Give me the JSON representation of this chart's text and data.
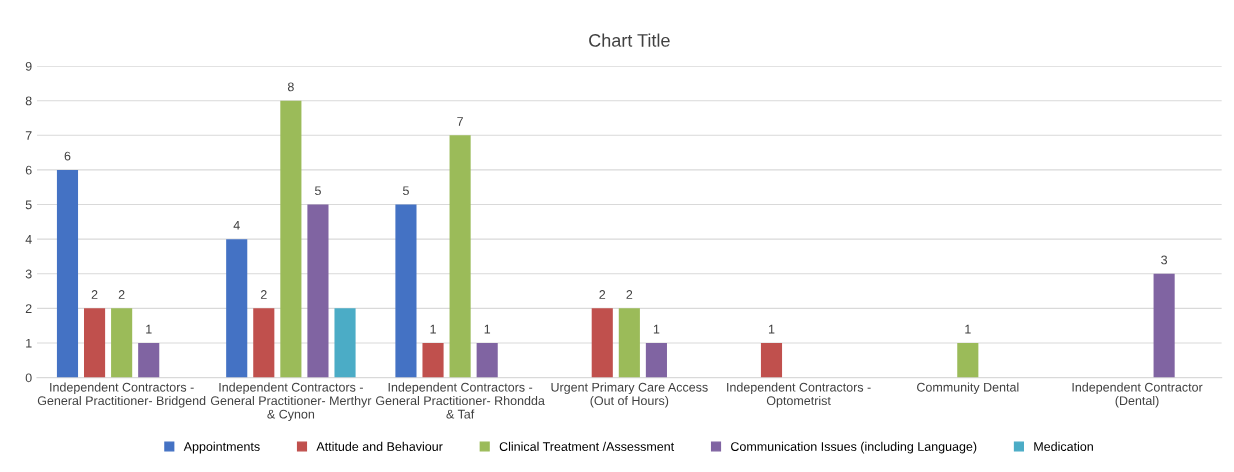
{
  "chart_data": {
    "type": "bar",
    "title": "Chart Title",
    "categories": [
      "Independent Contractors -\nGeneral Practitioner- Bridgend",
      "Independent Contractors -\nGeneral Practitioner- Merthyr\n& Cynon",
      "Independent Contractors -\nGeneral Practitioner- Rhondda\n& Taf",
      "Urgent Primary Care Access\n(Out of Hours)",
      "Independent Contractors -\nOptometrist",
      "Community Dental",
      "Independent Contractor\n(Dental)"
    ],
    "series": [
      {
        "name": "Appointments",
        "color": "#4472c4",
        "values": [
          6,
          4,
          5,
          null,
          null,
          null,
          null
        ],
        "value_labels": [
          "6",
          "4",
          "5",
          null,
          null,
          null,
          null
        ]
      },
      {
        "name": "Attitude and Behaviour",
        "color": "#c0504d",
        "values": [
          2,
          2,
          1,
          2,
          1,
          null,
          null
        ],
        "value_labels": [
          "2",
          "2",
          "1",
          "2",
          "1",
          null,
          null
        ]
      },
      {
        "name": "Clinical Treatment /Assessment",
        "color": "#9bbb59",
        "values": [
          2,
          8,
          7,
          2,
          null,
          1,
          null
        ],
        "value_labels": [
          "2",
          "8",
          "7",
          "2",
          null,
          "1",
          null
        ]
      },
      {
        "name": "Communication Issues (including Language)",
        "color": "#8064a2",
        "values": [
          1,
          5,
          1,
          1,
          null,
          null,
          3
        ],
        "value_labels": [
          "1",
          "5",
          "1",
          "1",
          null,
          null,
          "3"
        ]
      },
      {
        "name": "Medication",
        "color": "#4bacc6",
        "values": [
          null,
          2,
          null,
          null,
          null,
          null,
          null
        ],
        "value_labels": [
          null,
          null,
          null,
          null,
          null,
          null,
          null
        ]
      }
    ],
    "ylim": [
      0,
      9
    ],
    "yticks": [
      0,
      1,
      2,
      3,
      4,
      5,
      6,
      7,
      8,
      9
    ],
    "grid": "y",
    "legend": "bottom"
  }
}
